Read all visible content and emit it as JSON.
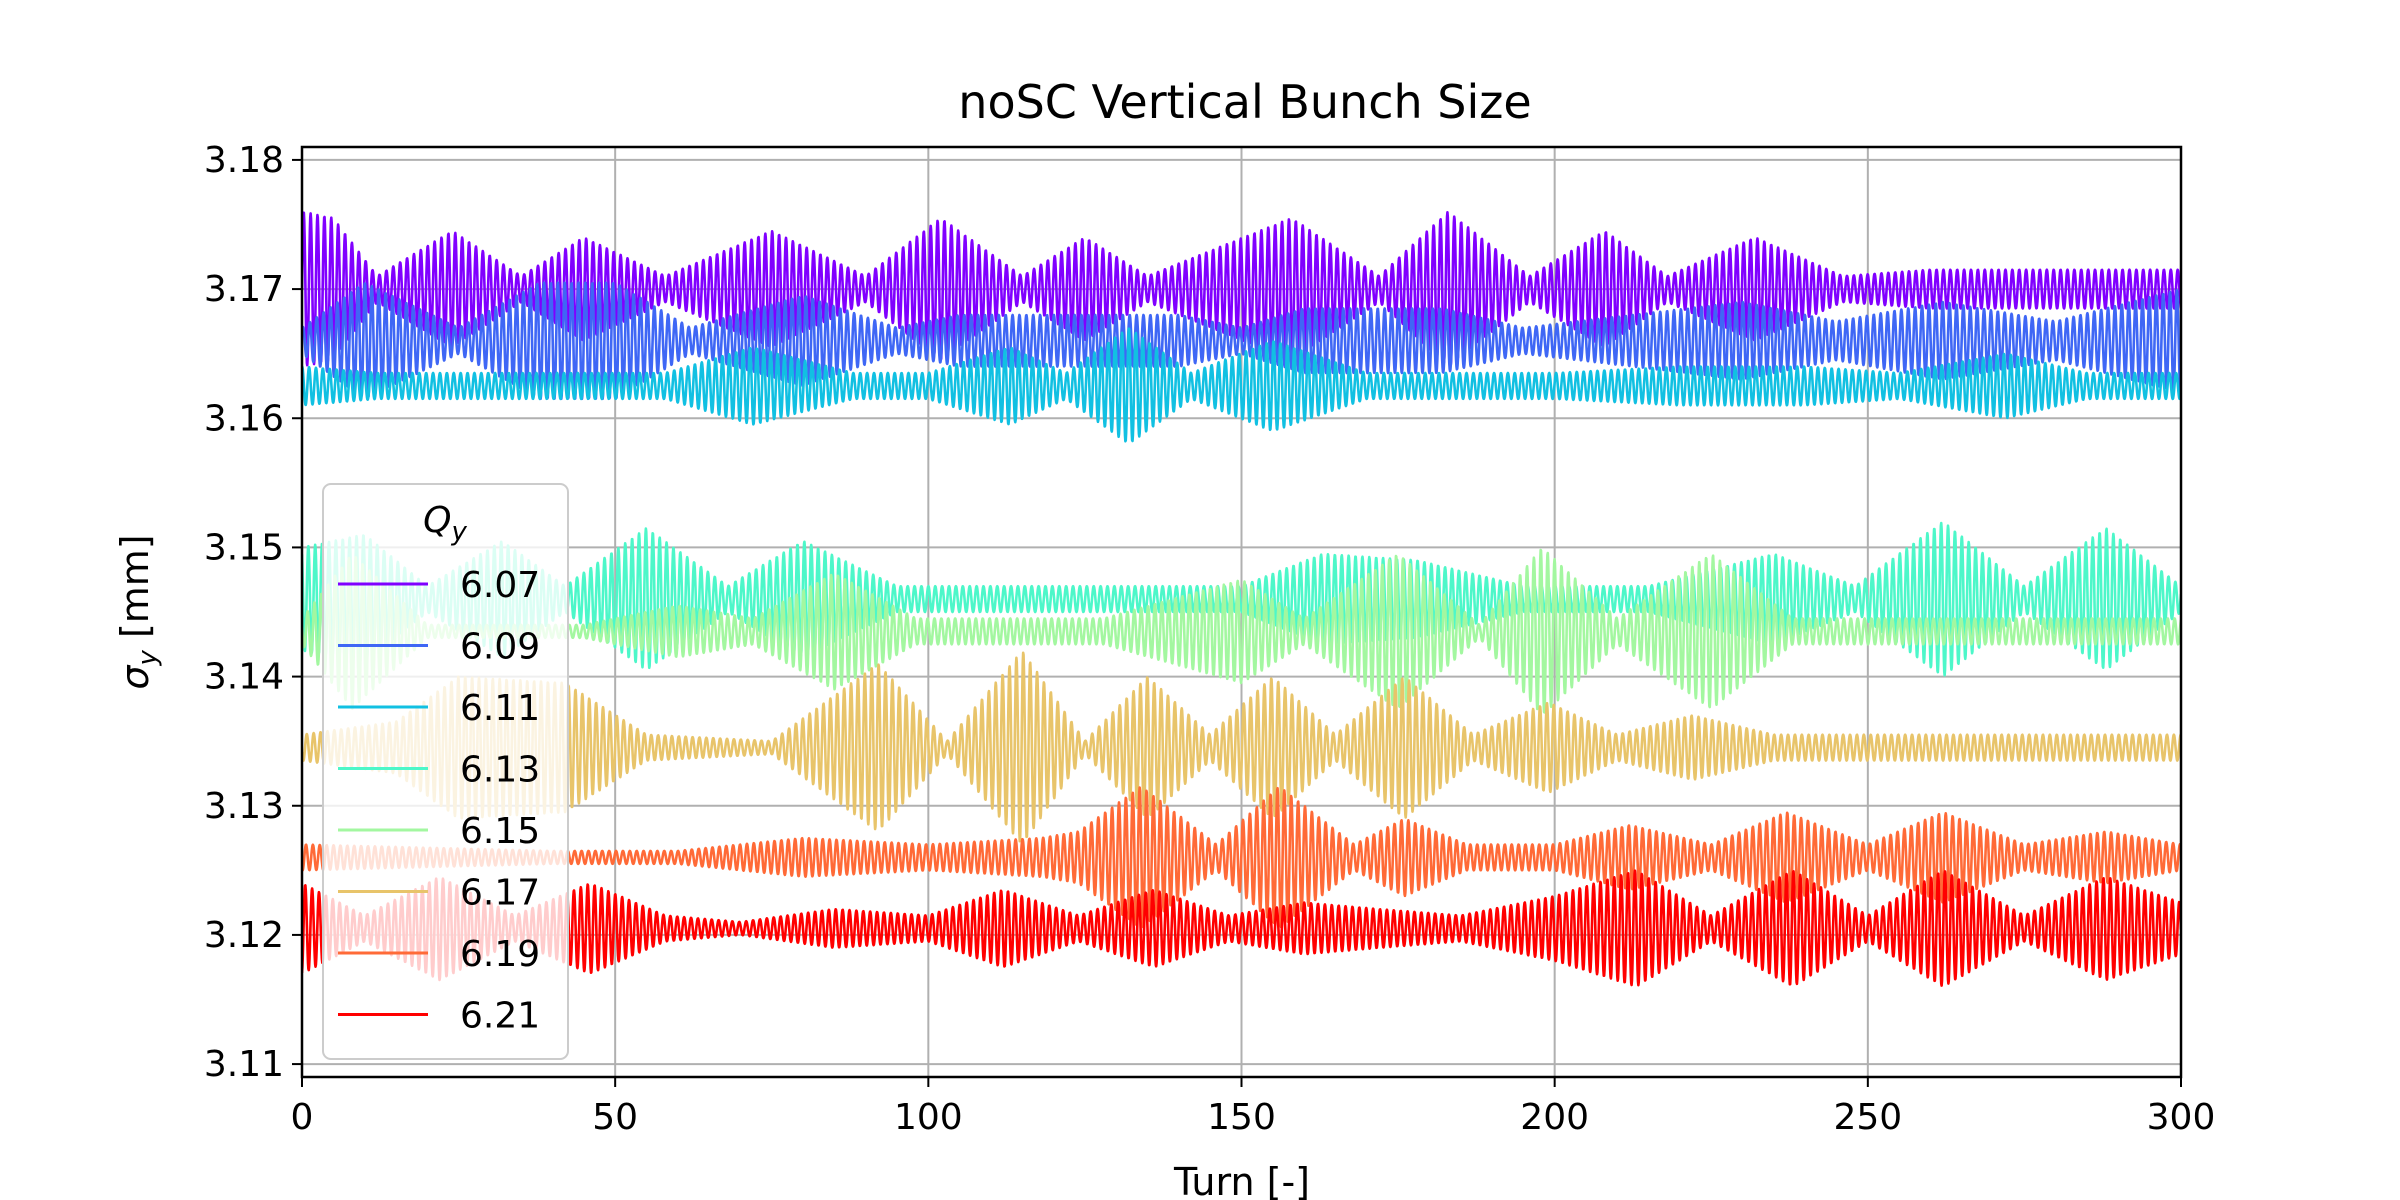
{
  "chart_data": {
    "type": "line",
    "title": "noSC Vertical Bunch Size",
    "xlabel": "Turn [-]",
    "ylabel_symbol": "σ",
    "ylabel_subscript": "y",
    "ylabel_unit": " [mm]",
    "xlim": [
      0,
      300
    ],
    "ylim": [
      3.109,
      3.181
    ],
    "x_ticks": [
      0,
      50,
      100,
      150,
      200,
      250,
      300
    ],
    "y_ticks": [
      3.11,
      3.12,
      3.13,
      3.14,
      3.15,
      3.16,
      3.17,
      3.18
    ],
    "y_tick_labels": [
      "3.11",
      "3.12",
      "3.13",
      "3.14",
      "3.15",
      "3.16",
      "3.17",
      "3.18"
    ],
    "grid": true,
    "legend": {
      "placement": "lower-left",
      "title_symbol": "Q",
      "title_subscript": "y"
    },
    "series": [
      {
        "name": "6.07",
        "color": "#8000ff",
        "mean": 3.17,
        "period": 1.1,
        "envelope": [
          [
            0,
            0.006
          ],
          [
            5,
            0.0055
          ],
          [
            12,
            0.001
          ],
          [
            24,
            0.0045
          ],
          [
            35,
            0.001
          ],
          [
            45,
            0.004
          ],
          [
            58,
            0.001
          ],
          [
            75,
            0.0045
          ],
          [
            90,
            0.001
          ],
          [
            102,
            0.0055
          ],
          [
            115,
            0.001
          ],
          [
            125,
            0.004
          ],
          [
            135,
            0.001
          ],
          [
            158,
            0.0055
          ],
          [
            172,
            0.001
          ],
          [
            183,
            0.006
          ],
          [
            196,
            0.001
          ],
          [
            208,
            0.0045
          ],
          [
            218,
            0.001
          ],
          [
            232,
            0.004
          ],
          [
            246,
            0.001
          ],
          [
            260,
            0.0015
          ],
          [
            300,
            0.0015
          ]
        ]
      },
      {
        "name": "6.09",
        "color": "#3f67f5",
        "mean": 3.166,
        "period": 1.1,
        "envelope": [
          [
            0,
            0.001
          ],
          [
            10,
            0.0045
          ],
          [
            25,
            0.001
          ],
          [
            38,
            0.0045
          ],
          [
            50,
            0.0045
          ],
          [
            62,
            0.001
          ],
          [
            80,
            0.0035
          ],
          [
            95,
            0.001
          ],
          [
            105,
            0.002
          ],
          [
            140,
            0.002
          ],
          [
            150,
            0.001
          ],
          [
            160,
            0.0025
          ],
          [
            182,
            0.0025
          ],
          [
            195,
            0.001
          ],
          [
            230,
            0.003
          ],
          [
            245,
            0.0015
          ],
          [
            262,
            0.003
          ],
          [
            280,
            0.0015
          ],
          [
            300,
            0.004
          ]
        ]
      },
      {
        "name": "6.11",
        "color": "#11c0e2",
        "mean": 3.1625,
        "period": 1.1,
        "envelope": [
          [
            0,
            0.0015
          ],
          [
            12,
            0.001
          ],
          [
            28,
            0.001
          ],
          [
            45,
            0.001
          ],
          [
            58,
            0.001
          ],
          [
            72,
            0.003
          ],
          [
            88,
            0.001
          ],
          [
            100,
            0.001
          ],
          [
            113,
            0.003
          ],
          [
            122,
            0.001
          ],
          [
            132,
            0.0045
          ],
          [
            142,
            0.001
          ],
          [
            155,
            0.0035
          ],
          [
            170,
            0.001
          ],
          [
            185,
            0.001
          ],
          [
            200,
            0.001
          ],
          [
            220,
            0.0015
          ],
          [
            240,
            0.0015
          ],
          [
            255,
            0.001
          ],
          [
            272,
            0.0025
          ],
          [
            285,
            0.001
          ],
          [
            300,
            0.001
          ]
        ]
      },
      {
        "name": "6.13",
        "color": "#4df7c9",
        "mean": 3.146,
        "period": 1.1,
        "envelope": [
          [
            0,
            0.004
          ],
          [
            10,
            0.005
          ],
          [
            20,
            0.001
          ],
          [
            32,
            0.0045
          ],
          [
            42,
            0.001
          ],
          [
            55,
            0.0055
          ],
          [
            68,
            0.001
          ],
          [
            80,
            0.0045
          ],
          [
            95,
            0.001
          ],
          [
            120,
            0.001
          ],
          [
            150,
            0.001
          ],
          [
            163,
            0.0035
          ],
          [
            178,
            0.003
          ],
          [
            195,
            0.001
          ],
          [
            215,
            0.001
          ],
          [
            235,
            0.0035
          ],
          [
            248,
            0.001
          ],
          [
            262,
            0.006
          ],
          [
            275,
            0.001
          ],
          [
            288,
            0.0055
          ],
          [
            300,
            0.001
          ]
        ]
      },
      {
        "name": "6.15",
        "color": "#a3f7a0",
        "mean": 3.1435,
        "period": 1.1,
        "envelope": [
          [
            0,
            0.001
          ],
          [
            8,
            0.006
          ],
          [
            20,
            0.0005
          ],
          [
            45,
            0.0005
          ],
          [
            60,
            0.002
          ],
          [
            72,
            0.001
          ],
          [
            85,
            0.0045
          ],
          [
            98,
            0.001
          ],
          [
            112,
            0.001
          ],
          [
            128,
            0.001
          ],
          [
            150,
            0.004
          ],
          [
            160,
            0.001
          ],
          [
            175,
            0.006
          ],
          [
            188,
            0.0005
          ],
          [
            198,
            0.0065
          ],
          [
            210,
            0.001
          ],
          [
            225,
            0.006
          ],
          [
            238,
            0.001
          ],
          [
            250,
            0.001
          ],
          [
            270,
            0.001
          ],
          [
            290,
            0.001
          ],
          [
            300,
            0.001
          ]
        ]
      },
      {
        "name": "6.17",
        "color": "#e8c46a",
        "mean": 3.1345,
        "period": 1.1,
        "envelope": [
          [
            0,
            0.001
          ],
          [
            15,
            0.002
          ],
          [
            25,
            0.0055
          ],
          [
            42,
            0.005
          ],
          [
            55,
            0.001
          ],
          [
            75,
            0.0005
          ],
          [
            92,
            0.0065
          ],
          [
            103,
            0.0005
          ],
          [
            115,
            0.0075
          ],
          [
            125,
            0.0005
          ],
          [
            135,
            0.0055
          ],
          [
            145,
            0.001
          ],
          [
            155,
            0.0055
          ],
          [
            165,
            0.001
          ],
          [
            176,
            0.0055
          ],
          [
            187,
            0.001
          ],
          [
            199,
            0.0035
          ],
          [
            210,
            0.001
          ],
          [
            222,
            0.0025
          ],
          [
            235,
            0.001
          ],
          [
            250,
            0.001
          ],
          [
            270,
            0.001
          ],
          [
            300,
            0.001
          ]
        ]
      },
      {
        "name": "6.19",
        "color": "#ff6a37",
        "mean": 3.126,
        "period": 1.1,
        "envelope": [
          [
            0,
            0.001
          ],
          [
            40,
            0.0005
          ],
          [
            60,
            0.0005
          ],
          [
            80,
            0.0015
          ],
          [
            100,
            0.001
          ],
          [
            118,
            0.0015
          ],
          [
            124,
            0.002
          ],
          [
            134,
            0.0055
          ],
          [
            146,
            0.001
          ],
          [
            156,
            0.0055
          ],
          [
            168,
            0.001
          ],
          [
            176,
            0.003
          ],
          [
            186,
            0.001
          ],
          [
            200,
            0.001
          ],
          [
            212,
            0.0025
          ],
          [
            225,
            0.001
          ],
          [
            237,
            0.0035
          ],
          [
            250,
            0.001
          ],
          [
            262,
            0.0035
          ],
          [
            275,
            0.001
          ],
          [
            288,
            0.002
          ],
          [
            300,
            0.001
          ]
        ]
      },
      {
        "name": "6.21",
        "color": "#ff0000",
        "mean": 3.1205,
        "period": 1.1,
        "envelope": [
          [
            0,
            0.0035
          ],
          [
            10,
            0.001
          ],
          [
            22,
            0.004
          ],
          [
            34,
            0.001
          ],
          [
            46,
            0.0035
          ],
          [
            58,
            0.001
          ],
          [
            70,
            0.0005
          ],
          [
            85,
            0.0015
          ],
          [
            100,
            0.001
          ],
          [
            112,
            0.003
          ],
          [
            124,
            0.001
          ],
          [
            136,
            0.003
          ],
          [
            148,
            0.001
          ],
          [
            160,
            0.002
          ],
          [
            172,
            0.0015
          ],
          [
            185,
            0.001
          ],
          [
            200,
            0.0025
          ],
          [
            213,
            0.0045
          ],
          [
            225,
            0.001
          ],
          [
            238,
            0.0045
          ],
          [
            250,
            0.001
          ],
          [
            262,
            0.0045
          ],
          [
            275,
            0.001
          ],
          [
            288,
            0.004
          ],
          [
            300,
            0.002
          ]
        ]
      }
    ]
  }
}
